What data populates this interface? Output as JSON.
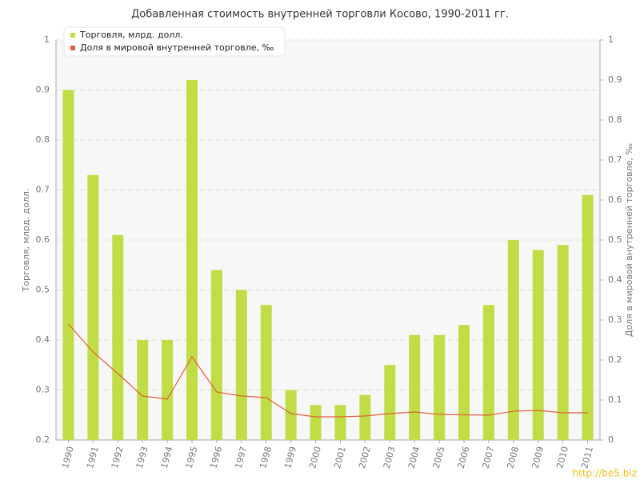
{
  "chart_data": {
    "type": "bar+line",
    "title": "Добавленная стоимость внутренней торговли Косово, 1990-2011 гг.",
    "y_label": "Торговля, млрд. долл.",
    "y2_label": "Доля в мировой внутренней торговле, ‰",
    "watermark": "http://be5.biz",
    "categories": [
      "1990",
      "1991",
      "1992",
      "1993",
      "1994",
      "1995",
      "1996",
      "1997",
      "1998",
      "1999",
      "2000",
      "2001",
      "2002",
      "2003",
      "2004",
      "2005",
      "2006",
      "2007",
      "2008",
      "2009",
      "2010",
      "2011"
    ],
    "series": [
      {
        "name": "Торговля, млрд. долл.",
        "type": "bar",
        "color": "#c0dd45",
        "values": [
          0.9,
          0.73,
          0.61,
          0.4,
          0.4,
          0.92,
          0.54,
          0.5,
          0.47,
          0.3,
          0.27,
          0.27,
          0.29,
          0.35,
          0.41,
          0.41,
          0.43,
          0.47,
          0.6,
          0.58,
          0.59,
          0.69
        ]
      },
      {
        "name": "Доля в мировой внутренней торговле, ‰",
        "type": "line",
        "axis": "y2",
        "color": "#e0603a",
        "values": [
          0.29,
          0.22,
          0.166,
          0.11,
          0.102,
          0.208,
          0.12,
          0.11,
          0.106,
          0.066,
          0.058,
          0.058,
          0.06,
          0.066,
          0.07,
          0.064,
          0.063,
          0.062,
          0.072,
          0.074,
          0.068,
          0.068
        ]
      }
    ],
    "ylim": [
      0.2,
      1
    ],
    "yticks": [
      0.2,
      0.3,
      0.4,
      0.5,
      0.6,
      0.7,
      0.8,
      0.9,
      1
    ],
    "y2lim": [
      0,
      1
    ],
    "y2ticks": [
      0,
      0.1,
      0.2,
      0.3,
      0.4,
      0.5,
      0.6,
      0.7,
      0.8,
      0.9,
      1
    ],
    "grid": true,
    "legend": "top-left"
  }
}
